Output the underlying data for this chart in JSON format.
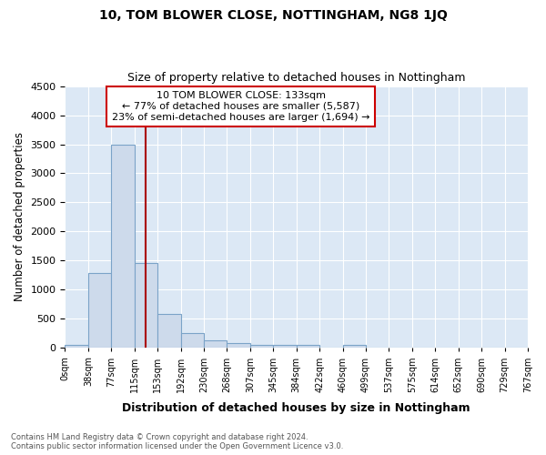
{
  "title": "10, TOM BLOWER CLOSE, NOTTINGHAM, NG8 1JQ",
  "subtitle": "Size of property relative to detached houses in Nottingham",
  "xlabel": "Distribution of detached houses by size in Nottingham",
  "ylabel": "Number of detached properties",
  "bin_labels": [
    "0sqm",
    "38sqm",
    "77sqm",
    "115sqm",
    "153sqm",
    "192sqm",
    "230sqm",
    "268sqm",
    "307sqm",
    "345sqm",
    "384sqm",
    "422sqm",
    "460sqm",
    "499sqm",
    "537sqm",
    "575sqm",
    "614sqm",
    "652sqm",
    "690sqm",
    "729sqm",
    "767sqm"
  ],
  "bar_values": [
    50,
    1280,
    3500,
    1460,
    580,
    250,
    130,
    85,
    50,
    50,
    50,
    0,
    55,
    0,
    0,
    0,
    0,
    0,
    0,
    0
  ],
  "bar_color": "#cddaeb",
  "bar_edge_color": "#7ba3c8",
  "vline_x": 133,
  "vline_color": "#aa0000",
  "ylim": [
    0,
    4500
  ],
  "annotation_box_text": "10 TOM BLOWER CLOSE: 133sqm\n← 77% of detached houses are smaller (5,587)\n23% of semi-detached houses are larger (1,694) →",
  "annotation_box_color": "#ffffff",
  "annotation_box_edge_color": "#cc0000",
  "footer_text": "Contains HM Land Registry data © Crown copyright and database right 2024.\nContains public sector information licensed under the Open Government Licence v3.0.",
  "bin_width": 38,
  "property_size": 133,
  "fig_background_color": "#ffffff",
  "plot_background_color": "#dce8f5",
  "grid_color": "#ffffff"
}
